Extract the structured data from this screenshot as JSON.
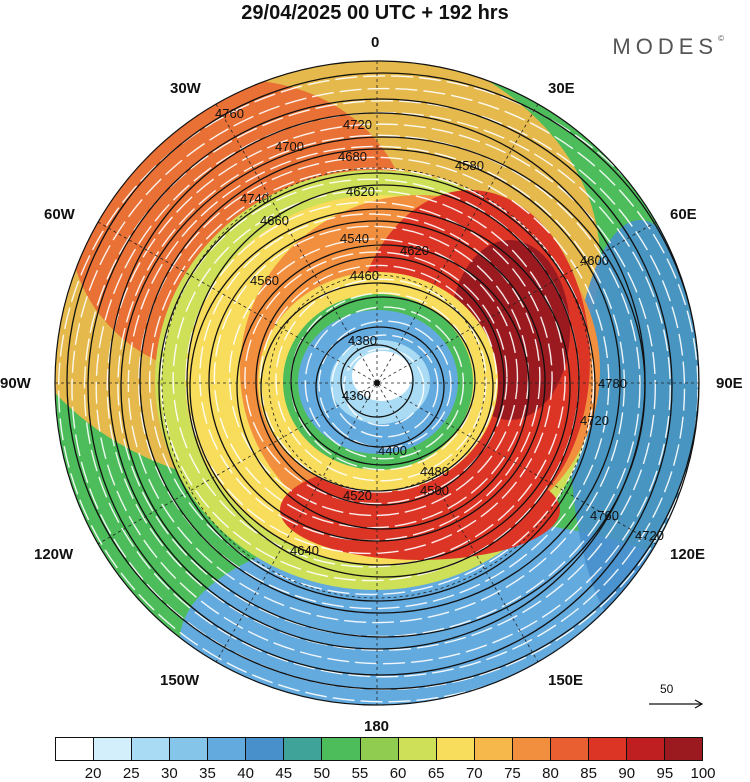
{
  "title": "29/04/2025  00 UTC  + 192 hrs",
  "brand": {
    "name": "MODES",
    "mark": "©"
  },
  "longitude_labels": {
    "0": "0",
    "30E": "30E",
    "60E": "60E",
    "90E": "90E",
    "120E": "120E",
    "150E": "150E",
    "180": "180",
    "150W": "150W",
    "120W": "120W",
    "90W": "90W",
    "60W": "60W",
    "30W": "30W"
  },
  "height_contours": [
    "4760",
    "4720",
    "4700",
    "4680",
    "4740",
    "4660",
    "4620",
    "4540",
    "4620",
    "4560",
    "4460",
    "4580",
    "4380",
    "4360",
    "4400",
    "4480",
    "4520",
    "4500",
    "4640",
    "4600",
    "4720",
    "4780"
  ],
  "wind_reference": {
    "label": "50",
    "icon": "arrow-icon"
  },
  "colorbar": {
    "ticks": [
      "20",
      "25",
      "30",
      "35",
      "40",
      "45",
      "50",
      "55",
      "60",
      "65",
      "70",
      "75",
      "80",
      "85",
      "90",
      "95",
      "100"
    ],
    "colors": [
      "#ffffff",
      "#d3effc",
      "#a9dcf4",
      "#86c5ea",
      "#63aadf",
      "#4890cc",
      "#3fa39a",
      "#4dbd5b",
      "#8fcc4f",
      "#cde057",
      "#f8dc5c",
      "#f6b84a",
      "#f28f3e",
      "#ea5f31",
      "#dc3526",
      "#c01f22",
      "#9a1a1f"
    ]
  }
}
